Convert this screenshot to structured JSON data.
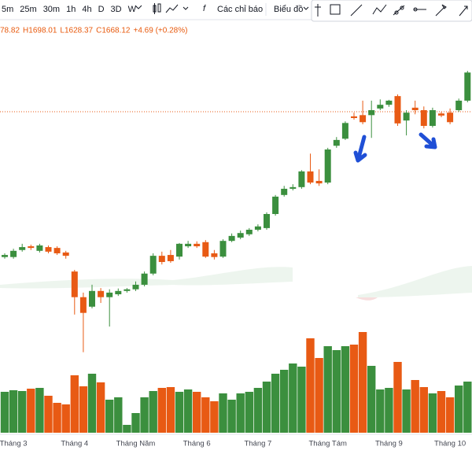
{
  "toolbar": {
    "intervals": [
      "5m",
      "25m",
      "30m",
      "1h",
      "4h",
      "D",
      "3D",
      "W"
    ],
    "indicators": "Các chỉ báo",
    "chart_menu": "Biểu đồ"
  },
  "legend": {
    "open": "78.82",
    "high": "H1698.01",
    "low": "L1628.37",
    "close": "C1668.12",
    "change": "+4.69 (+0.28%)"
  },
  "chart_data": {
    "type": "candlestick",
    "up_color": "#3b8f3e",
    "down_color": "#e85a14",
    "categories": [
      null,
      "Tháng 3",
      null,
      null,
      null,
      null,
      null,
      null,
      "Tháng 4",
      null,
      null,
      null,
      null,
      null,
      null,
      "Tháng Năm",
      null,
      null,
      null,
      null,
      null,
      null,
      "Tháng 6",
      null,
      null,
      null,
      null,
      null,
      null,
      "Tháng 7",
      null,
      null,
      null,
      null,
      null,
      null,
      null,
      "Tháng Tám",
      null,
      null,
      null,
      null,
      null,
      null,
      "Tháng 9",
      null,
      null,
      null,
      null,
      null,
      null,
      "Tháng 10",
      null,
      null
    ],
    "open": [
      1317,
      1317,
      1334,
      1343,
      1332,
      1341,
      1339,
      1328,
      1282,
      1220,
      1197,
      1235,
      1220,
      1227,
      1235,
      1239,
      1250,
      1277,
      1320,
      1322,
      1318,
      1343,
      1349,
      1353,
      1326,
      1318,
      1356,
      1364,
      1372,
      1383,
      1387,
      1421,
      1467,
      1482,
      1486,
      1524,
      1501,
      1497,
      1586,
      1603,
      1657,
      1660,
      1660,
      1676,
      1685,
      1706,
      1647,
      1678,
      1672,
      1634,
      1664,
      1666,
      1672,
      1695
    ],
    "high": [
      1326,
      1337,
      1349,
      1347,
      1349,
      1345,
      1343,
      1332,
      1286,
      1231,
      1250,
      1242,
      1239,
      1241,
      1242,
      1258,
      1282,
      1326,
      1330,
      1334,
      1351,
      1356,
      1355,
      1358,
      1334,
      1360,
      1374,
      1381,
      1387,
      1396,
      1425,
      1467,
      1489,
      1493,
      1527,
      1567,
      1529,
      1581,
      1607,
      1645,
      1666,
      1695,
      1695,
      1698,
      1697,
      1710,
      1672,
      1695,
      1681,
      1678,
      1668,
      1676,
      1700,
      1767
    ],
    "low": [
      1313,
      1313,
      1330,
      1334,
      1328,
      1326,
      1322,
      1313,
      1178,
      1087,
      1193,
      1206,
      1149,
      1223,
      1231,
      1235,
      1246,
      1273,
      1299,
      1303,
      1311,
      1339,
      1339,
      1315,
      1311,
      1315,
      1353,
      1360,
      1368,
      1379,
      1383,
      1417,
      1463,
      1478,
      1482,
      1493,
      1489,
      1493,
      1581,
      1600,
      1649,
      1638,
      1605,
      1672,
      1680,
      1634,
      1611,
      1662,
      1628,
      1630,
      1655,
      1638,
      1668,
      1691
    ],
    "close": [
      1322,
      1332,
      1341,
      1339,
      1345,
      1330,
      1326,
      1320,
      1220,
      1182,
      1235,
      1220,
      1231,
      1235,
      1239,
      1250,
      1277,
      1320,
      1305,
      1307,
      1349,
      1349,
      1343,
      1318,
      1317,
      1356,
      1368,
      1375,
      1383,
      1391,
      1421,
      1463,
      1482,
      1486,
      1524,
      1497,
      1495,
      1577,
      1600,
      1641,
      1653,
      1643,
      1672,
      1685,
      1695,
      1640,
      1666,
      1672,
      1634,
      1672,
      1659,
      1643,
      1695,
      1763
    ],
    "volume": [
      52,
      54,
      53,
      56,
      57,
      47,
      38,
      36,
      73,
      59,
      75,
      64,
      42,
      45,
      10,
      25,
      45,
      53,
      57,
      58,
      52,
      55,
      52,
      45,
      40,
      50,
      42,
      50,
      52,
      57,
      65,
      75,
      80,
      88,
      84,
      120,
      95,
      110,
      105,
      110,
      112,
      128,
      85,
      55,
      57,
      90,
      55,
      67,
      58,
      50,
      53,
      45,
      60,
      65
    ],
    "ylim": [
      1073,
      1847
    ],
    "vlim": [
      0,
      130
    ]
  }
}
